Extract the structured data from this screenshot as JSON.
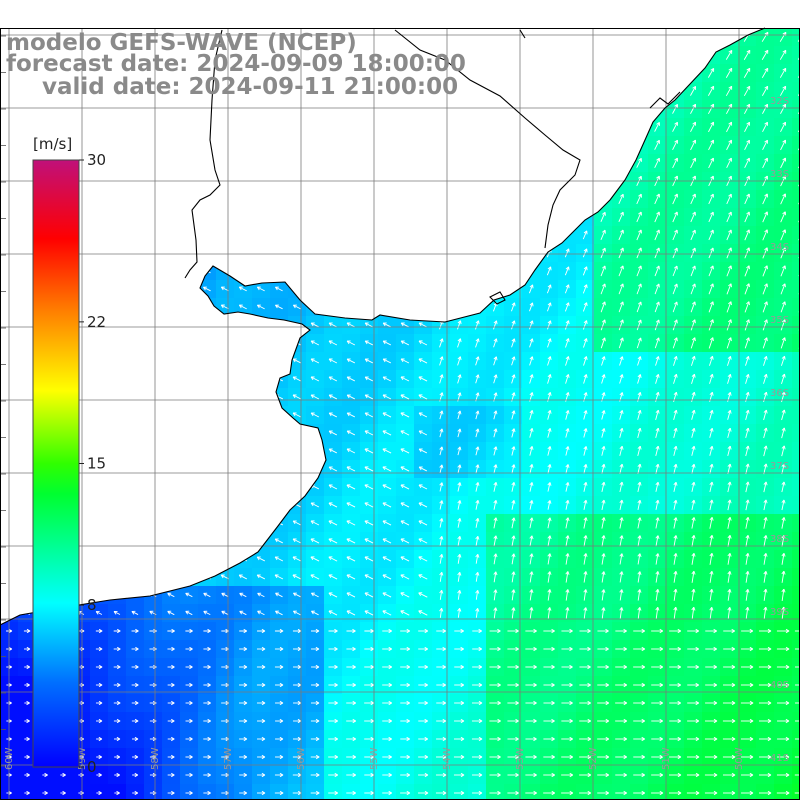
{
  "header": {
    "model_line": "modelo GEFS-WAVE (NCEP)",
    "forecast_line": "forecast date: 2024-09-09 18:00:00",
    "valid_line": "valid date: 2024-09-11 21:00:00"
  },
  "colorbar": {
    "unit": "[m/s]",
    "tick_labels": [
      "30",
      "22",
      "15",
      "8",
      "0"
    ],
    "tick_values": [
      30,
      22,
      15,
      8,
      0
    ],
    "range": [
      0,
      30
    ],
    "colors": [
      "#0000ff",
      "#0080ff",
      "#00ffff",
      "#00ff00",
      "#ffff00",
      "#ff8000",
      "#ff0000",
      "#c00080"
    ]
  },
  "map": {
    "variable": "wind speed",
    "land_color": "#ffffff",
    "grid_color": "#808080",
    "coast_color": "#000000",
    "lat_labels": [
      "32S",
      "33S",
      "34S",
      "35S",
      "36S",
      "37S",
      "38S",
      "39S",
      "40S",
      "41S"
    ],
    "lon_labels": [
      "60W",
      "59W",
      "58W",
      "57W",
      "56W",
      "55W",
      "54W",
      "53W",
      "52W",
      "51W",
      "50W"
    ]
  }
}
